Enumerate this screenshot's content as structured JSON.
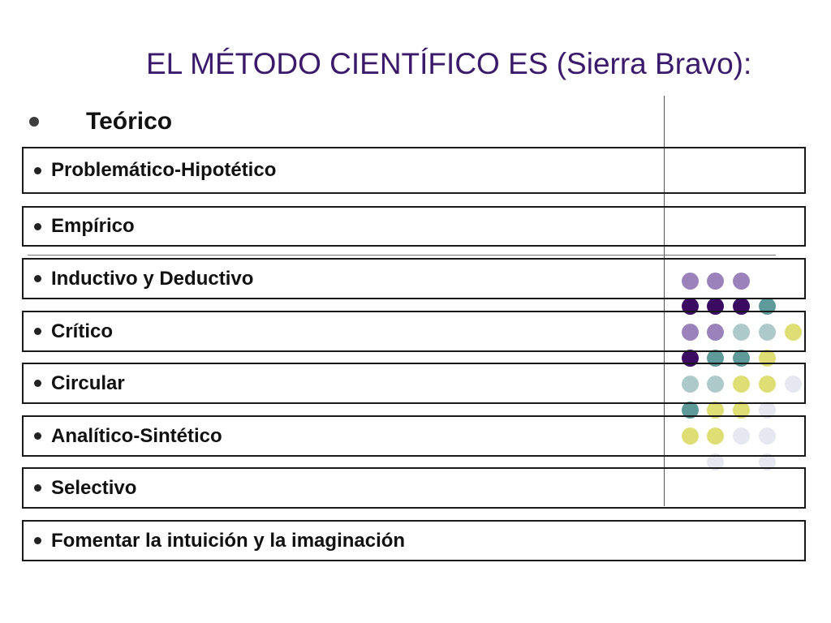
{
  "title": "EL MÉTODO CIENTÍFICO ES (Sierra Bravo):",
  "first_item": "Teórico",
  "items": [
    "Problemático-Hipotético",
    "Empírico",
    "Inductivo y Deductivo",
    "Crítico",
    "Circular",
    "Analítico-Sintético",
    "Selectivo",
    "Fomentar la intuición y la imaginación"
  ],
  "colors": {
    "title": "#3b1a6b",
    "lavender": "#9b82bb",
    "purple": "#3b0a63",
    "teal": "#5f9a9a",
    "light_teal": "#aec9c9",
    "yellow": "#dede74",
    "pale": "#e7e7f1"
  }
}
